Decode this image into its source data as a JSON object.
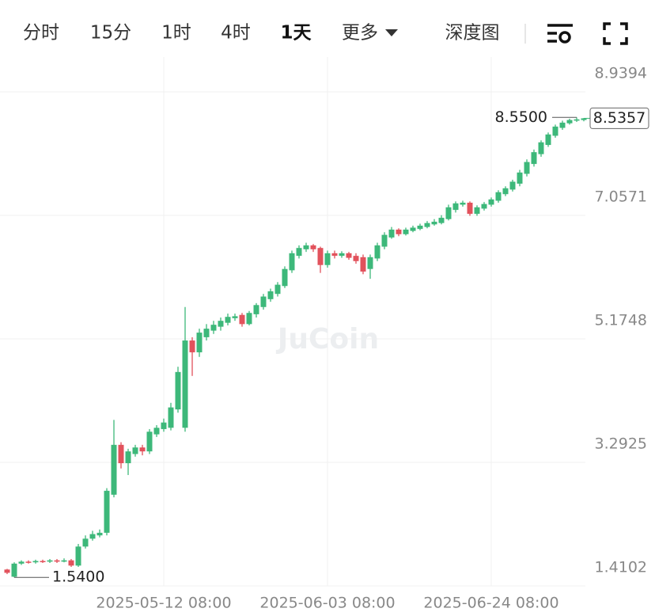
{
  "toolbar": {
    "tabs": [
      "分时",
      "15分",
      "1时",
      "4时",
      "1天",
      "更多",
      "深度图"
    ],
    "active": 4
  },
  "chart_data": {
    "type": "candlestick",
    "watermark": "JuCoin",
    "categories": [
      null,
      null,
      null,
      null,
      null,
      null,
      null,
      null,
      null,
      null,
      null,
      null,
      null,
      null,
      null,
      null,
      null,
      null,
      null,
      null,
      null,
      null,
      "2025-05-12 08:00",
      null,
      null,
      null,
      null,
      null,
      null,
      null,
      null,
      null,
      null,
      null,
      null,
      null,
      null,
      null,
      null,
      null,
      null,
      null,
      null,
      null,
      null,
      "2025-06-03 08:00",
      null,
      null,
      null,
      null,
      null,
      null,
      null,
      null,
      null,
      null,
      null,
      null,
      null,
      null,
      null,
      null,
      null,
      null,
      null,
      null,
      null,
      null,
      "2025-06-24 08:00",
      null,
      null,
      null,
      null,
      null,
      null,
      null,
      null,
      null,
      null,
      null,
      null,
      null
    ],
    "open": [
      1.66,
      1.55,
      1.75,
      1.78,
      1.77,
      1.79,
      1.78,
      1.8,
      1.78,
      1.8,
      1.72,
      2.01,
      2.13,
      2.18,
      2.22,
      2.8,
      3.56,
      3.28,
      3.42,
      3.52,
      3.46,
      3.72,
      3.8,
      3.82,
      4.1,
      3.82,
      5.15,
      4.97,
      5.2,
      5.3,
      5.36,
      5.42,
      5.49,
      5.54,
      5.4,
      5.55,
      5.66,
      5.78,
      5.86,
      5.98,
      6.22,
      6.44,
      6.54,
      6.6,
      6.56,
      6.3,
      6.48,
      6.44,
      6.48,
      6.44,
      6.42,
      6.24,
      6.4,
      6.58,
      6.72,
      6.84,
      6.77,
      6.82,
      6.85,
      6.88,
      6.92,
      6.94,
      7.0,
      7.14,
      7.22,
      7.25,
      7.08,
      7.16,
      7.22,
      7.28,
      7.38,
      7.45,
      7.54,
      7.69,
      7.84,
      7.99,
      8.13,
      8.27,
      8.39,
      8.46,
      8.5,
      8.51
    ],
    "high": [
      1.67,
      1.77,
      1.8,
      1.8,
      1.81,
      1.81,
      1.82,
      1.82,
      1.83,
      1.82,
      2.05,
      2.18,
      2.25,
      2.27,
      2.9,
      3.94,
      3.6,
      3.5,
      3.56,
      3.56,
      3.8,
      3.86,
      3.96,
      4.2,
      4.75,
      5.66,
      5.2,
      5.33,
      5.4,
      5.45,
      5.5,
      5.56,
      5.56,
      5.57,
      5.6,
      5.72,
      5.86,
      5.94,
      6.04,
      6.28,
      6.52,
      6.6,
      6.64,
      6.62,
      6.58,
      6.52,
      6.52,
      6.51,
      6.5,
      6.48,
      6.46,
      6.46,
      6.64,
      6.8,
      6.88,
      6.86,
      6.87,
      6.9,
      6.93,
      6.97,
      7.0,
      7.06,
      7.22,
      7.27,
      7.28,
      7.27,
      7.21,
      7.26,
      7.33,
      7.44,
      7.5,
      7.6,
      7.75,
      7.91,
      8.06,
      8.2,
      8.32,
      8.44,
      8.5,
      8.53,
      8.55,
      8.54
    ],
    "low": [
      1.59,
      1.54,
      1.73,
      1.75,
      1.75,
      1.76,
      1.76,
      1.76,
      1.77,
      1.7,
      1.7,
      1.98,
      2.1,
      2.15,
      2.18,
      2.76,
      3.2,
      3.1,
      3.38,
      3.4,
      3.42,
      3.68,
      3.76,
      3.78,
      4.05,
      3.76,
      4.61,
      4.9,
      5.15,
      5.25,
      5.3,
      5.38,
      5.45,
      5.36,
      5.38,
      5.5,
      5.62,
      5.74,
      5.82,
      5.95,
      6.18,
      6.4,
      6.5,
      6.5,
      6.18,
      6.26,
      6.4,
      6.41,
      6.38,
      6.32,
      6.16,
      6.09,
      6.36,
      6.54,
      6.7,
      6.74,
      6.75,
      6.8,
      6.83,
      6.86,
      6.9,
      6.92,
      6.98,
      7.1,
      7.19,
      7.05,
      7.05,
      7.13,
      7.19,
      7.25,
      7.35,
      7.42,
      7.5,
      7.65,
      7.8,
      7.95,
      8.1,
      8.24,
      8.36,
      8.44,
      8.48,
      8.49
    ],
    "close": [
      1.61,
      1.75,
      1.78,
      1.77,
      1.79,
      1.78,
      1.8,
      1.78,
      1.8,
      1.72,
      2.01,
      2.13,
      2.2,
      2.22,
      2.86,
      3.56,
      3.28,
      3.46,
      3.52,
      3.46,
      3.76,
      3.82,
      3.9,
      4.13,
      4.67,
      5.15,
      4.97,
      5.27,
      5.33,
      5.39,
      5.45,
      5.51,
      5.52,
      5.4,
      5.57,
      5.69,
      5.82,
      5.9,
      6.0,
      6.24,
      6.48,
      6.56,
      6.6,
      6.54,
      6.3,
      6.48,
      6.44,
      6.48,
      6.41,
      6.36,
      6.2,
      6.42,
      6.6,
      6.76,
      6.84,
      6.77,
      6.84,
      6.87,
      6.9,
      6.94,
      6.96,
      7.02,
      7.18,
      7.24,
      7.25,
      7.08,
      7.18,
      7.23,
      7.3,
      7.41,
      7.47,
      7.57,
      7.71,
      7.87,
      8.02,
      8.17,
      8.29,
      8.41,
      8.47,
      8.51,
      8.52,
      8.5357
    ],
    "up_color": "#3db87a",
    "down_color": "#e2525c",
    "ylim": [
      1.4102,
      9.47
    ],
    "yticks": [
      1.4102,
      3.2925,
      5.1748,
      7.0571,
      8.9394
    ],
    "grid": true,
    "max_label": {
      "value": 8.55,
      "label": "8.5500"
    },
    "min_label": {
      "value": 1.54,
      "label": "1.5400"
    },
    "last_price": {
      "value": 8.5357,
      "label": "8.5357"
    }
  }
}
